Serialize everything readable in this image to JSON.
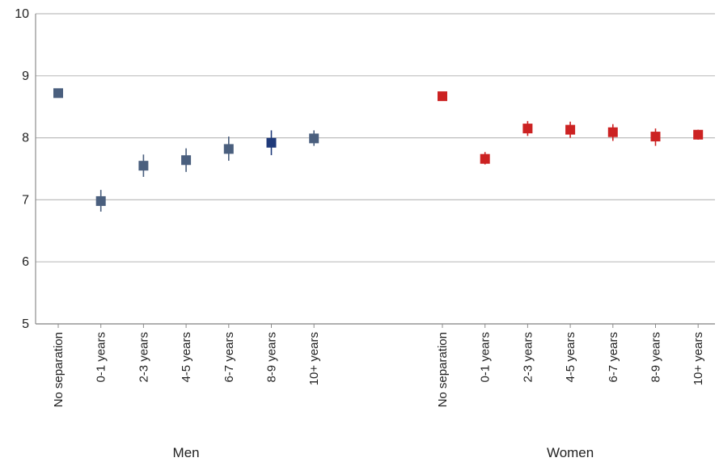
{
  "chart_data": {
    "type": "scatter",
    "title": "",
    "xlabel": "",
    "ylabel": "",
    "ylim": [
      5,
      10
    ],
    "yticks": [
      5,
      6,
      7,
      8,
      9,
      10
    ],
    "grid": true,
    "legend": "none",
    "groups": [
      {
        "name": "Men",
        "color": "#4a5f7e",
        "categories": [
          "No separation",
          "0-1 years",
          "2-3 years",
          "4-5 years",
          "6-7 years",
          "8-9 years",
          "10+ years"
        ],
        "values": [
          8.72,
          6.98,
          7.55,
          7.64,
          7.82,
          7.92,
          7.99
        ],
        "lower": [
          8.72,
          6.81,
          7.37,
          7.45,
          7.63,
          7.72,
          7.87
        ],
        "upper": [
          8.72,
          7.16,
          7.73,
          7.83,
          8.02,
          8.12,
          8.12
        ],
        "highlight_index": 5,
        "highlight_color": "#1f3a7a"
      },
      {
        "name": "Women",
        "color": "#cc2222",
        "categories": [
          "No separation",
          "0-1 years",
          "2-3 years",
          "4-5 years",
          "6-7 years",
          "8-9 years",
          "10+ years"
        ],
        "values": [
          8.67,
          7.66,
          8.15,
          8.13,
          8.09,
          8.02,
          8.05
        ],
        "lower": [
          8.67,
          7.57,
          8.03,
          8.0,
          7.95,
          7.87,
          7.97
        ],
        "upper": [
          8.67,
          7.77,
          8.27,
          8.26,
          8.22,
          8.15,
          8.13
        ]
      }
    ]
  }
}
